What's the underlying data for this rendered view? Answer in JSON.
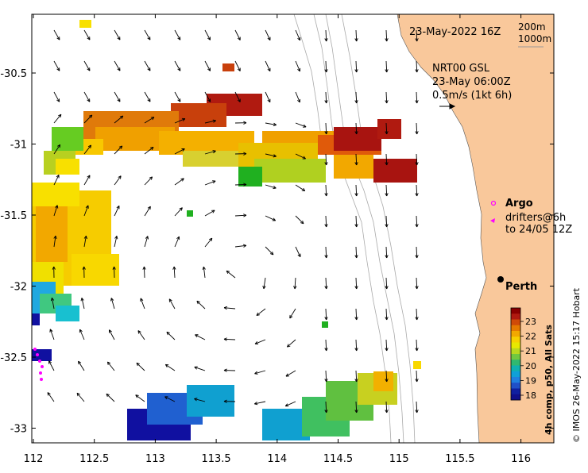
{
  "map": {
    "date_label": "23-May-2022 16Z",
    "bathy_labels": [
      "200m",
      "1000m"
    ],
    "nrt": {
      "line1": "NRT00 GSL",
      "line2": "23-May 06:00Z",
      "line3": "0.5m/s (1kt 6h)"
    },
    "argo": {
      "title": "Argo",
      "line1": "drifters@6h",
      "line2": "to 24/05 12Z"
    },
    "city": "Perth",
    "colorbar": {
      "title": "4h comp, p50, All Sats",
      "ticks": [
        "23",
        "22",
        "21",
        "20",
        "19",
        "18"
      ]
    },
    "credit": "© IMOS 26-May-2022 15:17 Hobart",
    "axes": {
      "x_ticks": [
        "112",
        "112.5",
        "113",
        "113.5",
        "114",
        "114.5",
        "115",
        "115.5",
        "116"
      ],
      "y_ticks": [
        "-30.5",
        "-31",
        "-31.5",
        "-32",
        "-32.5",
        "-33"
      ]
    },
    "colors": {
      "land": "#f9c89b",
      "sst_warm": "#a01010",
      "sst_cool": "#10108a",
      "argo": "#ff00ff"
    }
  }
}
